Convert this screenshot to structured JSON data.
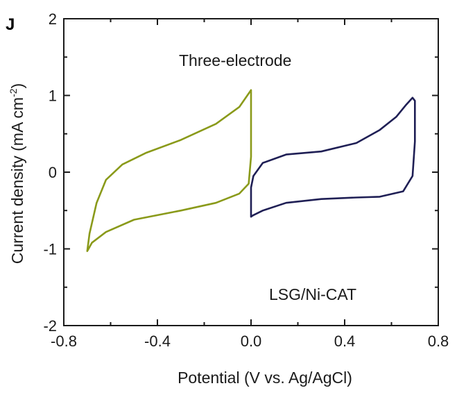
{
  "panel_label": "J",
  "chart_data": {
    "type": "line",
    "title": "",
    "xlabel": "Potential (V vs. Ag/AgCl)",
    "ylabel_main": "Current density",
    "ylabel_unit": "(mA cm",
    "ylabel_unit_sup": "-2",
    "ylabel_unit_close": ")",
    "xlim": [
      -0.8,
      0.8
    ],
    "ylim": [
      -2,
      2
    ],
    "xticks": [
      -0.8,
      -0.4,
      0.0,
      0.4,
      0.8
    ],
    "xtick_labels": [
      "-0.8",
      "-0.4",
      "0.0",
      "0.4",
      "0.8"
    ],
    "yticks": [
      -2,
      -1,
      0,
      1,
      2
    ],
    "ytick_labels": [
      "-2",
      "-1",
      "0",
      "1",
      "2"
    ],
    "grid": false,
    "annotations": [
      "Three-electrode",
      "LSG/Ni-CAT"
    ],
    "series": [
      {
        "color": "#8a9a1a",
        "x": [
          0.0,
          -0.05,
          -0.15,
          -0.3,
          -0.45,
          -0.55,
          -0.62,
          -0.66,
          -0.69,
          -0.7,
          -0.7,
          -0.68,
          -0.62,
          -0.5,
          -0.3,
          -0.15,
          -0.05,
          -0.01,
          0.0,
          0.0
        ],
        "y": [
          1.07,
          0.85,
          0.63,
          0.42,
          0.25,
          0.1,
          -0.1,
          -0.4,
          -0.8,
          -1.03,
          -1.03,
          -0.92,
          -0.78,
          -0.62,
          -0.5,
          -0.4,
          -0.28,
          -0.15,
          0.2,
          1.07
        ]
      },
      {
        "color": "#1f1f55",
        "x": [
          0.0,
          0.0,
          0.01,
          0.05,
          0.15,
          0.3,
          0.45,
          0.55,
          0.62,
          0.66,
          0.69,
          0.7,
          0.7,
          0.69,
          0.65,
          0.55,
          0.45,
          0.3,
          0.15,
          0.05,
          0.01,
          0.0
        ],
        "y": [
          -0.58,
          -0.2,
          -0.05,
          0.12,
          0.23,
          0.27,
          0.38,
          0.55,
          0.72,
          0.87,
          0.97,
          0.93,
          0.4,
          -0.05,
          -0.25,
          -0.32,
          -0.33,
          -0.35,
          -0.4,
          -0.5,
          -0.56,
          -0.58
        ]
      }
    ]
  }
}
